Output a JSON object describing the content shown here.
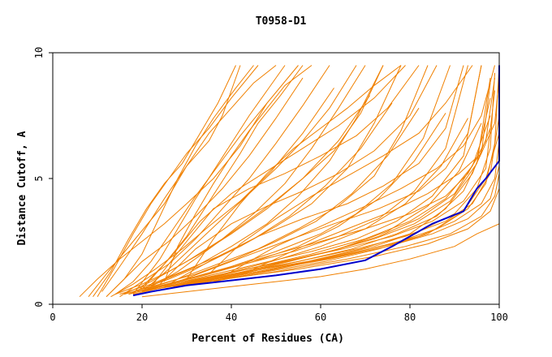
{
  "chart_data": {
    "type": "line",
    "title": "T0958-D1",
    "xlabel": "Percent of Residues (CA)",
    "ylabel": "Distance Cutoff, A",
    "xlim": [
      0,
      100
    ],
    "ylim": [
      0,
      10
    ],
    "xticks": [
      {
        "value": 0,
        "label": "0"
      },
      {
        "value": 20,
        "label": "20"
      },
      {
        "value": 40,
        "label": "40"
      },
      {
        "value": 60,
        "label": "60"
      },
      {
        "value": 80,
        "label": "80"
      },
      {
        "value": 100,
        "label": "100"
      }
    ],
    "yticks": [
      {
        "value": 0,
        "label": "0"
      },
      {
        "value": 5,
        "label": "5"
      },
      {
        "value": 10,
        "label": "10"
      }
    ],
    "colors": {
      "background_models": "#f08000",
      "highlight_model": "#0000cc"
    },
    "highlight_series": {
      "name": "highlight",
      "x": [
        18,
        22,
        30,
        40,
        50,
        60,
        70,
        76,
        81,
        85,
        92,
        95,
        97,
        100,
        100,
        100
      ],
      "y": [
        0.35,
        0.5,
        0.75,
        0.95,
        1.15,
        1.4,
        1.75,
        2.3,
        2.8,
        3.2,
        3.7,
        4.6,
        5.0,
        5.7,
        6.5,
        9.5
      ]
    },
    "series": [
      {
        "x": [
          8,
          12,
          18,
          25,
          30,
          35,
          40,
          45,
          50
        ],
        "y": [
          0.3,
          1.2,
          2.5,
          4.0,
          5.5,
          6.8,
          7.8,
          8.8,
          9.5
        ]
      },
      {
        "x": [
          11,
          15,
          20,
          25,
          30,
          35,
          38,
          40,
          42
        ],
        "y": [
          0.5,
          1.5,
          2.8,
          4.2,
          5.5,
          6.5,
          7.5,
          8.5,
          9.5
        ]
      },
      {
        "x": [
          12,
          16,
          20,
          24,
          28,
          32,
          36,
          41,
          45
        ],
        "y": [
          0.3,
          1.0,
          2.0,
          3.5,
          5.0,
          6.3,
          7.4,
          8.6,
          9.5
        ]
      },
      {
        "x": [
          14,
          18,
          22,
          27,
          32,
          37,
          42,
          48,
          55
        ],
        "y": [
          0.4,
          0.9,
          1.7,
          3.0,
          4.3,
          5.5,
          6.7,
          8.0,
          9.5
        ]
      },
      {
        "x": [
          15,
          20,
          26,
          32,
          38,
          44,
          50,
          56,
          62
        ],
        "y": [
          0.3,
          0.9,
          1.6,
          2.6,
          3.8,
          5.0,
          6.4,
          7.9,
          9.5
        ]
      },
      {
        "x": [
          16,
          22,
          30,
          38,
          45,
          52,
          58,
          64,
          70
        ],
        "y": [
          0.4,
          0.9,
          1.7,
          2.6,
          3.6,
          4.8,
          6.2,
          7.8,
          9.5
        ]
      },
      {
        "x": [
          17,
          24,
          32,
          40,
          48,
          55,
          62,
          68,
          74
        ],
        "y": [
          0.4,
          0.9,
          1.5,
          2.3,
          3.2,
          4.3,
          5.7,
          7.4,
          9.5
        ]
      },
      {
        "x": [
          18,
          26,
          34,
          42,
          50,
          58,
          66,
          72,
          78
        ],
        "y": [
          0.5,
          1.0,
          1.6,
          2.3,
          3.1,
          4.0,
          5.4,
          7.2,
          9.5
        ]
      },
      {
        "x": [
          19,
          28,
          37,
          46,
          55,
          64,
          72,
          78,
          84
        ],
        "y": [
          0.5,
          1.0,
          1.6,
          2.2,
          3.0,
          3.9,
          5.1,
          6.9,
          9.5
        ]
      },
      {
        "x": [
          20,
          30,
          40,
          50,
          60,
          68,
          76,
          83,
          89
        ],
        "y": [
          0.5,
          1.0,
          1.5,
          2.1,
          2.8,
          3.6,
          4.8,
          6.6,
          9.5
        ]
      },
      {
        "x": [
          21,
          32,
          43,
          54,
          64,
          73,
          81,
          88,
          93
        ],
        "y": [
          0.6,
          1.1,
          1.6,
          2.1,
          2.7,
          3.4,
          4.5,
          6.2,
          9.5
        ]
      },
      {
        "x": [
          22,
          34,
          46,
          58,
          68,
          77,
          85,
          92,
          96
        ],
        "y": [
          0.6,
          1.1,
          1.6,
          2.1,
          2.6,
          3.3,
          4.3,
          5.9,
          9.5
        ]
      },
      {
        "x": [
          23,
          36,
          49,
          62,
          72,
          81,
          89,
          95,
          98
        ],
        "y": [
          0.6,
          1.1,
          1.6,
          2.1,
          2.6,
          3.2,
          4.1,
          5.6,
          9.0
        ]
      },
      {
        "x": [
          24,
          38,
          52,
          65,
          76,
          85,
          92,
          97,
          99
        ],
        "y": [
          0.7,
          1.2,
          1.7,
          2.2,
          2.7,
          3.3,
          4.1,
          5.4,
          8.5
        ]
      },
      {
        "x": [
          25,
          40,
          55,
          68,
          79,
          88,
          94,
          98,
          100
        ],
        "y": [
          0.7,
          1.2,
          1.7,
          2.2,
          2.7,
          3.3,
          4.0,
          5.2,
          7.5
        ]
      },
      {
        "x": [
          27,
          43,
          58,
          71,
          82,
          90,
          96,
          99,
          100
        ],
        "y": [
          0.7,
          1.2,
          1.7,
          2.2,
          2.7,
          3.3,
          4.0,
          5.0,
          6.5
        ]
      },
      {
        "x": [
          29,
          46,
          62,
          75,
          85,
          93,
          98,
          100
        ],
        "y": [
          0.8,
          1.3,
          1.8,
          2.3,
          2.8,
          3.4,
          4.2,
          5.5
        ]
      },
      {
        "x": [
          31,
          50,
          66,
          79,
          89,
          96,
          99,
          100
        ],
        "y": [
          0.8,
          1.3,
          1.8,
          2.3,
          2.8,
          3.5,
          4.3,
          5.2
        ]
      },
      {
        "x": [
          34,
          55,
          72,
          84,
          93,
          98,
          100
        ],
        "y": [
          0.9,
          1.4,
          1.9,
          2.4,
          3.0,
          3.7,
          4.6
        ]
      },
      {
        "x": [
          22,
          30,
          36,
          44,
          52,
          60,
          68,
          75,
          82
        ],
        "y": [
          0.7,
          2.5,
          3.8,
          4.6,
          5.2,
          5.9,
          6.7,
          7.8,
          9.5
        ]
      },
      {
        "x": [
          20,
          27,
          33,
          40,
          48,
          56,
          64,
          72,
          79
        ],
        "y": [
          0.6,
          2.0,
          3.3,
          4.4,
          5.3,
          6.2,
          7.1,
          8.2,
          9.5
        ]
      },
      {
        "x": [
          24,
          32,
          40,
          48,
          56,
          64,
          72,
          80,
          86
        ],
        "y": [
          0.8,
          2.2,
          3.2,
          3.9,
          4.5,
          5.2,
          6.1,
          7.5,
          9.5
        ]
      },
      {
        "x": [
          26,
          36,
          46,
          56,
          66,
          74,
          82,
          88,
          92
        ],
        "y": [
          0.8,
          1.8,
          2.7,
          3.4,
          4.0,
          4.7,
          5.6,
          7.0,
          9.5
        ]
      },
      {
        "x": [
          28,
          40,
          52,
          63,
          73,
          82,
          88,
          93,
          96
        ],
        "y": [
          0.9,
          1.7,
          2.5,
          3.2,
          3.8,
          4.5,
          5.4,
          6.8,
          9.5
        ]
      },
      {
        "x": [
          30,
          44,
          58,
          70,
          80,
          88,
          93,
          97,
          99
        ],
        "y": [
          1.0,
          1.7,
          2.4,
          3.0,
          3.6,
          4.3,
          5.2,
          6.5,
          9.0
        ]
      },
      {
        "x": [
          18,
          24,
          28,
          32,
          36,
          40,
          44,
          48,
          52
        ],
        "y": [
          0.4,
          1.8,
          3.0,
          4.2,
          5.3,
          6.4,
          7.5,
          8.5,
          9.5
        ]
      },
      {
        "x": [
          19,
          25,
          30,
          34,
          38,
          42,
          46,
          51,
          56
        ],
        "y": [
          0.5,
          1.6,
          2.7,
          3.8,
          4.9,
          6.0,
          7.2,
          8.3,
          9.5
        ]
      },
      {
        "x": [
          20,
          26,
          32,
          38,
          44,
          50,
          56,
          62,
          68
        ],
        "y": [
          0.5,
          1.4,
          2.4,
          3.4,
          4.4,
          5.4,
          6.5,
          7.8,
          9.5
        ]
      },
      {
        "x": [
          21,
          28,
          35,
          42,
          49,
          56,
          63,
          69,
          74
        ],
        "y": [
          0.6,
          1.3,
          2.2,
          3.1,
          4.0,
          5.0,
          6.1,
          7.6,
          9.5
        ]
      },
      {
        "x": [
          12,
          16,
          20,
          26,
          32,
          38,
          44,
          50,
          56
        ],
        "y": [
          0.3,
          1.0,
          1.7,
          2.5,
          3.5,
          4.6,
          5.9,
          7.4,
          9.0
        ]
      },
      {
        "x": [
          13,
          18,
          23,
          29,
          35,
          42,
          49,
          56,
          63
        ],
        "y": [
          0.3,
          0.8,
          1.4,
          2.2,
          3.1,
          4.1,
          5.3,
          6.8,
          8.6
        ]
      },
      {
        "x": [
          14,
          20,
          26,
          33,
          40,
          48,
          56,
          64,
          71
        ],
        "y": [
          0.4,
          0.8,
          1.3,
          2.0,
          2.8,
          3.8,
          5.0,
          6.5,
          8.3
        ]
      },
      {
        "x": [
          15,
          22,
          29,
          37,
          45,
          53,
          61,
          69,
          76
        ],
        "y": [
          0.4,
          0.8,
          1.3,
          1.9,
          2.6,
          3.5,
          4.7,
          6.2,
          8.0
        ]
      },
      {
        "x": [
          16,
          24,
          32,
          41,
          50,
          59,
          67,
          75,
          82
        ],
        "y": [
          0.4,
          0.8,
          1.2,
          1.8,
          2.5,
          3.3,
          4.4,
          5.9,
          7.8
        ]
      },
      {
        "x": [
          17,
          26,
          35,
          45,
          55,
          64,
          73,
          81,
          88
        ],
        "y": [
          0.4,
          0.8,
          1.2,
          1.7,
          2.3,
          3.1,
          4.2,
          5.7,
          7.6
        ]
      },
      {
        "x": [
          18,
          28,
          38,
          49,
          60,
          70,
          79,
          87,
          93
        ],
        "y": [
          0.4,
          0.8,
          1.2,
          1.7,
          2.3,
          3.0,
          4.0,
          5.5,
          7.4
        ]
      },
      {
        "x": [
          19,
          30,
          41,
          53,
          64,
          75,
          84,
          91,
          96
        ],
        "y": [
          0.5,
          0.8,
          1.2,
          1.7,
          2.2,
          2.9,
          3.9,
          5.3,
          7.2
        ]
      },
      {
        "x": [
          20,
          32,
          44,
          57,
          69,
          80,
          88,
          94,
          98
        ],
        "y": [
          0.5,
          0.9,
          1.3,
          1.7,
          2.2,
          2.8,
          3.8,
          5.2,
          7.0
        ]
      },
      {
        "x": [
          22,
          35,
          48,
          61,
          73,
          84,
          92,
          97,
          100
        ],
        "y": [
          0.5,
          0.9,
          1.3,
          1.7,
          2.2,
          2.8,
          3.7,
          5.0,
          6.8
        ]
      },
      {
        "x": [
          10,
          14,
          18,
          22,
          26,
          30,
          35,
          40,
          46
        ],
        "y": [
          0.3,
          1.5,
          2.8,
          4.0,
          5.0,
          6.0,
          7.0,
          8.2,
          9.5
        ]
      },
      {
        "x": [
          9,
          13,
          17,
          21,
          25,
          29,
          33,
          37,
          41
        ],
        "y": [
          0.3,
          1.3,
          2.6,
          3.8,
          4.8,
          5.6,
          6.8,
          8.0,
          9.5
        ]
      },
      {
        "x": [
          6,
          10,
          15,
          20,
          25,
          30,
          36,
          42,
          48
        ],
        "y": [
          0.3,
          1.0,
          1.8,
          2.5,
          3.2,
          4.0,
          5.0,
          6.3,
          8.0
        ]
      },
      {
        "x": [
          25,
          28,
          32,
          36,
          40,
          44,
          48,
          52,
          58
        ],
        "y": [
          0.9,
          2.3,
          3.6,
          4.8,
          5.9,
          6.9,
          7.8,
          8.7,
          9.5
        ]
      },
      {
        "x": [
          30,
          36,
          42,
          48,
          54,
          60,
          66,
          72,
          78
        ],
        "y": [
          1.0,
          2.6,
          4.0,
          5.2,
          6.2,
          7.0,
          7.8,
          8.7,
          9.5
        ]
      },
      {
        "x": [
          35,
          42,
          50,
          58,
          66,
          74,
          82,
          88,
          94
        ],
        "y": [
          1.2,
          2.4,
          3.4,
          4.3,
          5.1,
          5.9,
          6.8,
          8.0,
          9.5
        ]
      },
      {
        "x": [
          40,
          50,
          60,
          70,
          78,
          86,
          92,
          96,
          99
        ],
        "y": [
          1.3,
          2.3,
          3.1,
          3.9,
          4.6,
          5.4,
          6.3,
          7.5,
          9.5
        ]
      },
      {
        "x": [
          45,
          56,
          66,
          76,
          84,
          91,
          96,
          99,
          100
        ],
        "y": [
          1.4,
          2.3,
          3.0,
          3.7,
          4.4,
          5.2,
          6.0,
          7.2,
          9.0
        ]
      },
      {
        "x": [
          20,
          30,
          40,
          50,
          60,
          70,
          80,
          90,
          95,
          100
        ],
        "y": [
          0.3,
          0.5,
          0.7,
          0.9,
          1.1,
          1.4,
          1.8,
          2.3,
          2.8,
          3.2
        ]
      },
      {
        "x": [
          23,
          34,
          46,
          58,
          70,
          80,
          88,
          94,
          98
        ],
        "y": [
          0.6,
          1.0,
          1.5,
          2.0,
          2.6,
          3.3,
          4.2,
          5.5,
          7.5
        ]
      },
      {
        "x": [
          26,
          38,
          50,
          62,
          73,
          82,
          90,
          95,
          98
        ],
        "y": [
          0.7,
          1.1,
          1.6,
          2.1,
          2.7,
          3.4,
          4.4,
          5.8,
          8.2
        ]
      },
      {
        "x": [
          28,
          42,
          55,
          67,
          77,
          86,
          92,
          96,
          98
        ],
        "y": [
          0.7,
          1.2,
          1.7,
          2.2,
          2.8,
          3.5,
          4.5,
          6.0,
          8.8
        ]
      },
      {
        "x": [
          32,
          46,
          60,
          72,
          82,
          90,
          95,
          98,
          99
        ],
        "y": [
          0.8,
          1.3,
          1.8,
          2.3,
          2.9,
          3.6,
          4.6,
          6.2,
          9.2
        ]
      },
      {
        "x": [
          36,
          50,
          64,
          76,
          86,
          93,
          97,
          99,
          100
        ],
        "y": [
          0.9,
          1.4,
          1.9,
          2.4,
          3.0,
          3.8,
          4.8,
          6.4,
          9.5
        ]
      }
    ]
  }
}
